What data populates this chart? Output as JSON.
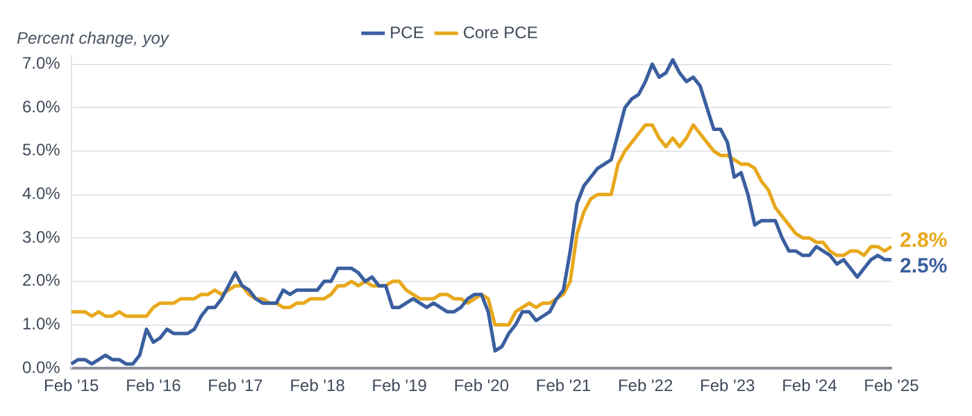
{
  "chart_data": {
    "type": "line",
    "ylabel": "Percent change, yoy",
    "categories": [
      "Feb '15",
      null,
      null,
      null,
      null,
      null,
      null,
      null,
      null,
      null,
      null,
      null,
      "Feb '16",
      null,
      null,
      null,
      null,
      null,
      null,
      null,
      null,
      null,
      null,
      null,
      "Feb '17",
      null,
      null,
      null,
      null,
      null,
      null,
      null,
      null,
      null,
      null,
      null,
      "Feb '18",
      null,
      null,
      null,
      null,
      null,
      null,
      null,
      null,
      null,
      null,
      null,
      "Feb '19",
      null,
      null,
      null,
      null,
      null,
      null,
      null,
      null,
      null,
      null,
      null,
      "Feb '20",
      null,
      null,
      null,
      null,
      null,
      null,
      null,
      null,
      null,
      null,
      null,
      "Feb '21",
      null,
      null,
      null,
      null,
      null,
      null,
      null,
      null,
      null,
      null,
      null,
      "Feb '22",
      null,
      null,
      null,
      null,
      null,
      null,
      null,
      null,
      null,
      null,
      null,
      "Feb '23",
      null,
      null,
      null,
      null,
      null,
      null,
      null,
      null,
      null,
      null,
      null,
      "Feb '24",
      null,
      null,
      null,
      null,
      null,
      null,
      null,
      null,
      null,
      null,
      null,
      "Feb '25"
    ],
    "series": [
      {
        "name": "PCE",
        "color": "#3a5f9f",
        "values": [
          0.1,
          0.2,
          0.2,
          0.1,
          0.2,
          0.3,
          0.2,
          0.2,
          0.1,
          0.1,
          0.3,
          0.9,
          0.6,
          0.7,
          0.9,
          0.8,
          0.8,
          0.8,
          0.9,
          1.2,
          1.4,
          1.4,
          1.6,
          1.9,
          2.2,
          1.9,
          1.8,
          1.6,
          1.5,
          1.5,
          1.5,
          1.8,
          1.7,
          1.8,
          1.8,
          1.8,
          1.8,
          2.0,
          2.0,
          2.3,
          2.3,
          2.3,
          2.2,
          2.0,
          2.1,
          1.9,
          1.9,
          1.4,
          1.4,
          1.5,
          1.6,
          1.5,
          1.4,
          1.5,
          1.4,
          1.3,
          1.3,
          1.4,
          1.6,
          1.7,
          1.7,
          1.3,
          0.4,
          0.5,
          0.8,
          1.0,
          1.3,
          1.3,
          1.1,
          1.2,
          1.3,
          1.6,
          1.8,
          2.7,
          3.8,
          4.2,
          4.4,
          4.6,
          4.7,
          4.8,
          5.4,
          6.0,
          6.2,
          6.3,
          6.6,
          7.0,
          6.7,
          6.8,
          7.1,
          6.8,
          6.6,
          6.7,
          6.5,
          6.0,
          5.5,
          5.5,
          5.2,
          4.4,
          4.5,
          4.0,
          3.3,
          3.4,
          3.4,
          3.4,
          3.0,
          2.7,
          2.7,
          2.6,
          2.6,
          2.8,
          2.7,
          2.6,
          2.4,
          2.5,
          2.3,
          2.1,
          2.3,
          2.5,
          2.6,
          2.5,
          2.5
        ]
      },
      {
        "name": "Core PCE",
        "color": "#e8a81c",
        "values": [
          1.3,
          1.3,
          1.3,
          1.2,
          1.3,
          1.2,
          1.2,
          1.3,
          1.2,
          1.2,
          1.2,
          1.2,
          1.4,
          1.5,
          1.5,
          1.5,
          1.6,
          1.6,
          1.6,
          1.7,
          1.7,
          1.8,
          1.7,
          1.8,
          1.9,
          1.9,
          1.7,
          1.6,
          1.6,
          1.5,
          1.5,
          1.4,
          1.4,
          1.5,
          1.5,
          1.6,
          1.6,
          1.6,
          1.7,
          1.9,
          1.9,
          2.0,
          1.9,
          2.0,
          1.9,
          1.9,
          1.9,
          2.0,
          2.0,
          1.8,
          1.7,
          1.6,
          1.6,
          1.6,
          1.7,
          1.7,
          1.6,
          1.6,
          1.5,
          1.6,
          1.7,
          1.6,
          1.0,
          1.0,
          1.0,
          1.3,
          1.4,
          1.5,
          1.4,
          1.5,
          1.5,
          1.6,
          1.7,
          2.0,
          3.1,
          3.6,
          3.9,
          4.0,
          4.0,
          4.0,
          4.7,
          5.0,
          5.2,
          5.4,
          5.6,
          5.6,
          5.3,
          5.1,
          5.3,
          5.1,
          5.3,
          5.6,
          5.4,
          5.2,
          5.0,
          4.9,
          4.9,
          4.8,
          4.7,
          4.7,
          4.6,
          4.3,
          4.1,
          3.7,
          3.5,
          3.3,
          3.1,
          3.0,
          3.0,
          2.9,
          2.9,
          2.7,
          2.6,
          2.6,
          2.7,
          2.7,
          2.6,
          2.8,
          2.8,
          2.7,
          2.8
        ]
      }
    ],
    "ylim": [
      0,
      7.2
    ],
    "yticks": [
      {
        "value": 0,
        "label": "0.0%"
      },
      {
        "value": 1,
        "label": "1.0%"
      },
      {
        "value": 2,
        "label": "2.0%"
      },
      {
        "value": 3,
        "label": "3.0%"
      },
      {
        "value": 4,
        "label": "4.0%"
      },
      {
        "value": 5,
        "label": "5.0%"
      },
      {
        "value": 6,
        "label": "6.0%"
      },
      {
        "value": 7,
        "label": "7.0%"
      }
    ],
    "grid": "y",
    "legend": "top",
    "marker": "none",
    "line_style": "solid",
    "annotations": [
      {
        "text": "2.8%",
        "x": "Feb '25",
        "y": 2.8
      },
      {
        "text": "2.5%",
        "x": "Feb '25",
        "y": 2.5
      }
    ]
  }
}
